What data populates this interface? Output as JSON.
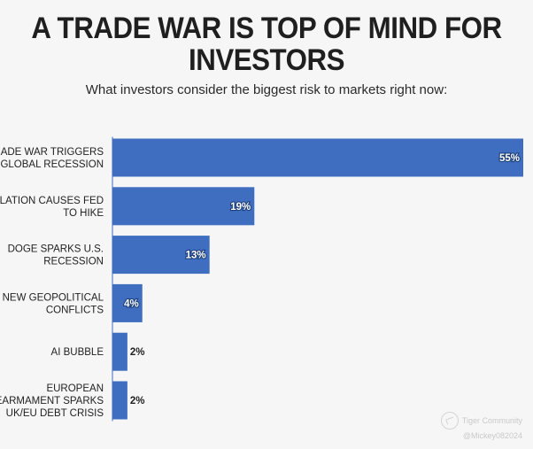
{
  "chart_data": {
    "type": "bar",
    "orientation": "horizontal",
    "title": "A TRADE WAR IS TOP OF MIND FOR INVESTORS",
    "subtitle": "What investors consider the biggest risk to markets right now:",
    "categories": [
      [
        "TRADE WAR TRIGGERS",
        "GLOBAL RECESSION"
      ],
      [
        "INFLATION CAUSES FED",
        "TO HIKE"
      ],
      [
        "DOGE SPARKS U.S.",
        "RECESSION"
      ],
      [
        "NEW GEOPOLITICAL",
        "CONFLICTS"
      ],
      [
        "AI BUBBLE"
      ],
      [
        "EUROPEAN",
        "REARMAMENT SPARKS",
        "UK/EU DEBT CRISIS"
      ]
    ],
    "values": [
      55,
      19,
      13,
      4,
      2,
      2
    ],
    "value_labels": [
      "55%",
      "19%",
      "13%",
      "4%",
      "2%",
      "2%"
    ],
    "xlim": [
      0,
      55
    ],
    "unit": "%",
    "bar_color": "#3f6ec0",
    "grid": false
  },
  "watermark": {
    "brand": "Tiger Community",
    "handle": "@Mickey082024"
  }
}
